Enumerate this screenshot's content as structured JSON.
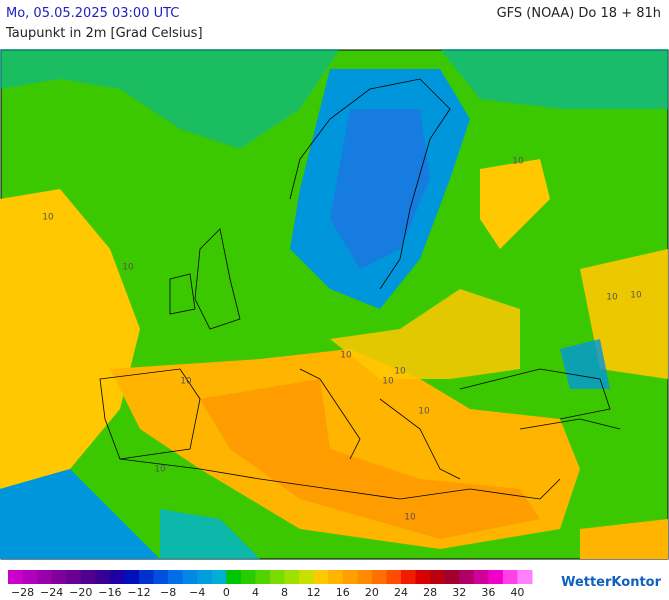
{
  "header": {
    "datetime": "Mo, 05.05.2025 03:00 UTC",
    "model": "GFS (NOAA) Do 18 + 81h",
    "variable": "Taupunkt in 2m [Grad Celsius]"
  },
  "map": {
    "contour_labels": [
      "10",
      "10",
      "10",
      "10",
      "10",
      "10",
      "10",
      "10",
      "10",
      "10",
      "10",
      "10"
    ]
  },
  "legend": {
    "lim": [
      -30,
      42
    ],
    "colors": [
      "#cc00cc",
      "#b000bc",
      "#9800aa",
      "#80009c",
      "#680094",
      "#50008e",
      "#380092",
      "#1e00a4",
      "#0010bc",
      "#0030d0",
      "#0050e0",
      "#006ee8",
      "#0088e4",
      "#009cdc",
      "#00b0d4",
      "#00c400",
      "#28cc00",
      "#50d400",
      "#78dc00",
      "#a0e000",
      "#c8e000",
      "#ffc800",
      "#ffb400",
      "#ffa000",
      "#ff8c00",
      "#ff7000",
      "#ff4c00",
      "#f01c00",
      "#d80000",
      "#b80010",
      "#a00030",
      "#b00068",
      "#d00098",
      "#f000c8",
      "#ff40e8",
      "#ff80ff"
    ],
    "ticks": [
      {
        "value": -28,
        "label": "−28"
      },
      {
        "value": -24,
        "label": "−24"
      },
      {
        "value": -20,
        "label": "−20"
      },
      {
        "value": -16,
        "label": "−16"
      },
      {
        "value": -12,
        "label": "−12"
      },
      {
        "value": -8,
        "label": "−8"
      },
      {
        "value": -4,
        "label": "−4"
      },
      0,
      4,
      8,
      12,
      16,
      20,
      24,
      28,
      32,
      36,
      40
    ]
  },
  "logo": "WetterKontor"
}
